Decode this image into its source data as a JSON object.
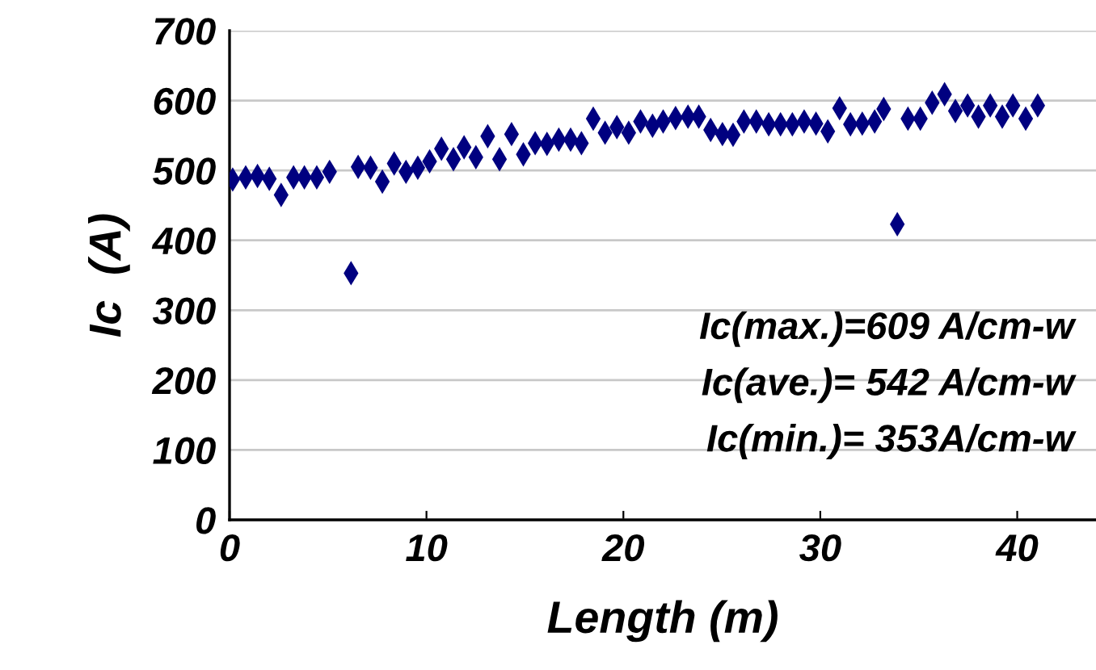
{
  "chart_data": {
    "type": "scatter",
    "xlabel": "Length (m)",
    "ylabel": "Ic  (A)",
    "x": [
      0.16,
      0.82,
      1.42,
      2.02,
      2.62,
      3.25,
      3.8,
      4.43,
      5.08,
      6.17,
      6.53,
      7.16,
      7.76,
      8.36,
      8.96,
      9.56,
      10.16,
      10.76,
      11.37,
      11.91,
      12.51,
      13.11,
      13.71,
      14.32,
      14.92,
      15.52,
      16.12,
      16.72,
      17.32,
      17.87,
      18.47,
      19.07,
      19.67,
      20.27,
      20.87,
      21.48,
      22.02,
      22.65,
      23.28,
      23.83,
      24.43,
      25.03,
      25.57,
      26.12,
      26.75,
      27.38,
      27.98,
      28.58,
      29.18,
      29.78,
      30.38,
      30.98,
      31.53,
      32.13,
      32.76,
      33.22,
      33.91,
      34.45,
      35.08,
      35.68,
      36.31,
      36.86,
      37.48,
      38.03,
      38.63,
      39.24,
      39.78,
      40.43,
      41.04
    ],
    "series": [
      {
        "color": "#000080",
        "values": [
          487,
          490,
          492,
          488,
          465,
          490,
          490,
          490,
          498,
          353,
          505,
          504,
          484,
          510,
          498,
          504,
          513,
          531,
          516,
          533,
          519,
          549,
          516,
          552,
          523,
          539,
          538,
          544,
          544,
          539,
          574,
          554,
          562,
          554,
          570,
          564,
          570,
          575,
          577,
          577,
          558,
          552,
          551,
          570,
          570,
          566,
          566,
          566,
          570,
          567,
          556,
          589,
          566,
          567,
          570,
          588,
          423,
          574,
          574,
          597,
          609,
          585,
          593,
          577,
          593,
          577,
          593,
          574,
          593
        ]
      }
    ],
    "xlim": [
      0,
      44
    ],
    "xticks": [
      0,
      10,
      20,
      30,
      40
    ],
    "ylim": [
      0,
      700
    ],
    "yticks": [
      0,
      100,
      200,
      300,
      400,
      500,
      600,
      700
    ],
    "grid": "y",
    "marker": "diamond",
    "annotations": [
      "Ic(max.)=609 A/cm-w",
      "Ic(ave.)= 542 A/cm-w",
      "Ic(min.)= 353A/cm-w"
    ]
  }
}
